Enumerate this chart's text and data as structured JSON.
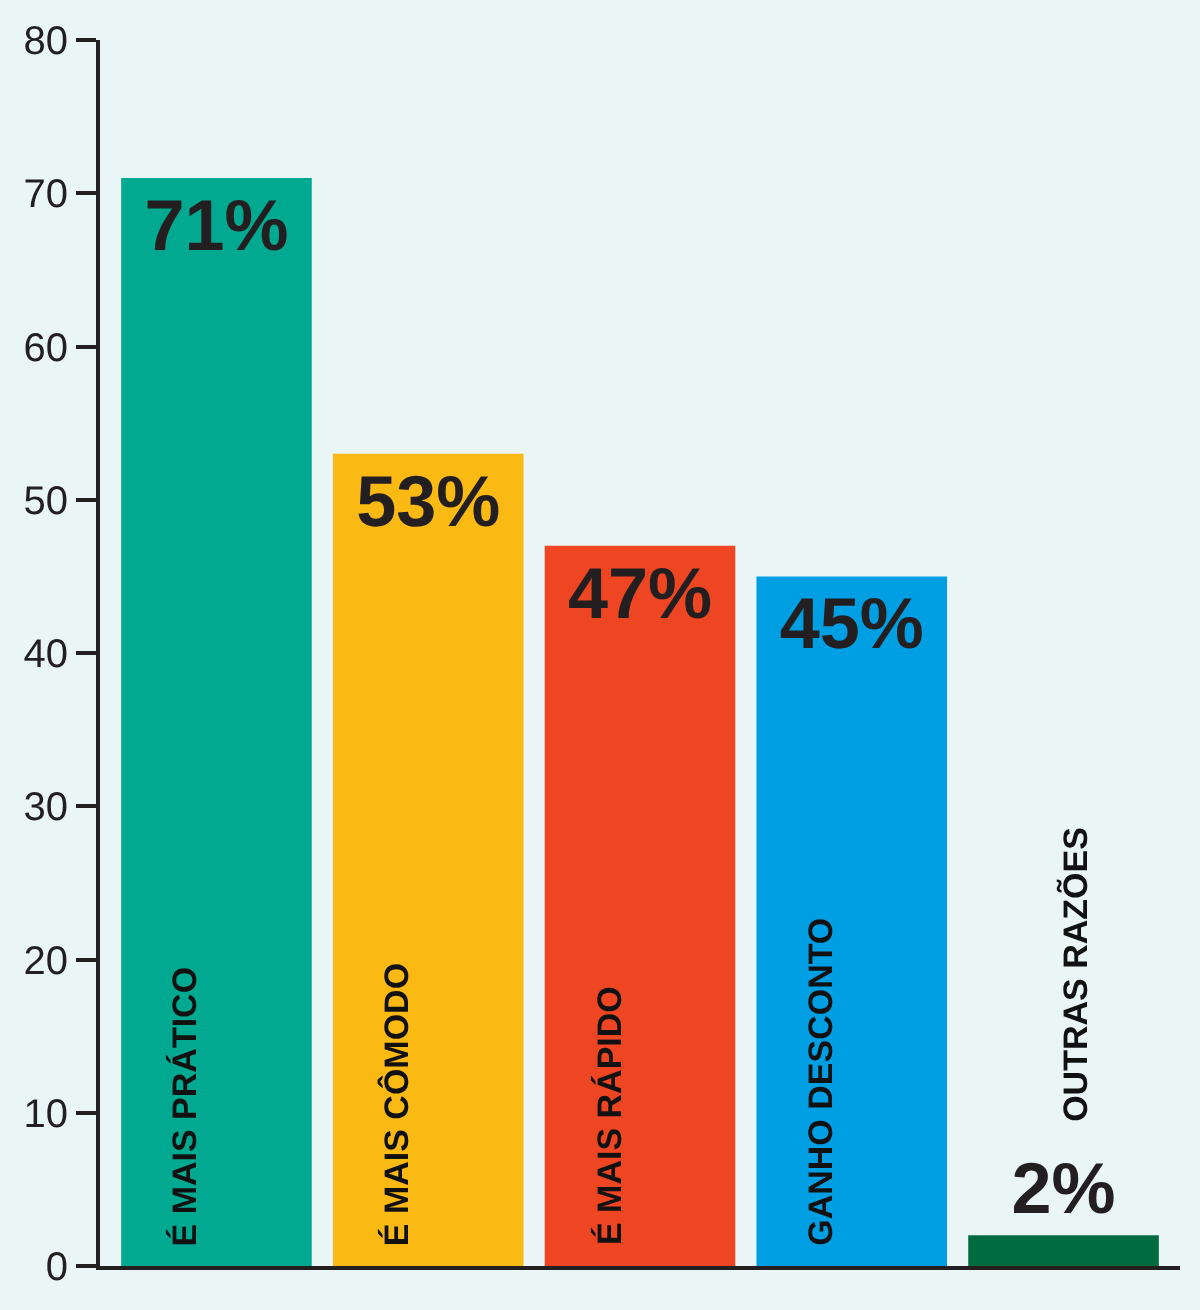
{
  "chart_data": {
    "type": "bar",
    "categories": [
      "É MAIS PRÁTICO",
      "É MAIS CÔMODO",
      "É MAIS RÁPIDO",
      "GANHO DESCONTO",
      "OUTRAS RAZÕES"
    ],
    "values": [
      71,
      53,
      47,
      45,
      2
    ],
    "colors": [
      "#00a98f",
      "#fbb914",
      "#ee4523",
      "#009fe3",
      "#006b3f"
    ],
    "value_labels": [
      "71%",
      "53%",
      "47%",
      "45%",
      "2%"
    ],
    "ylim": [
      0,
      80
    ],
    "yticks": [
      0,
      10,
      20,
      30,
      40,
      50,
      60,
      70,
      80
    ],
    "grid": false
  }
}
